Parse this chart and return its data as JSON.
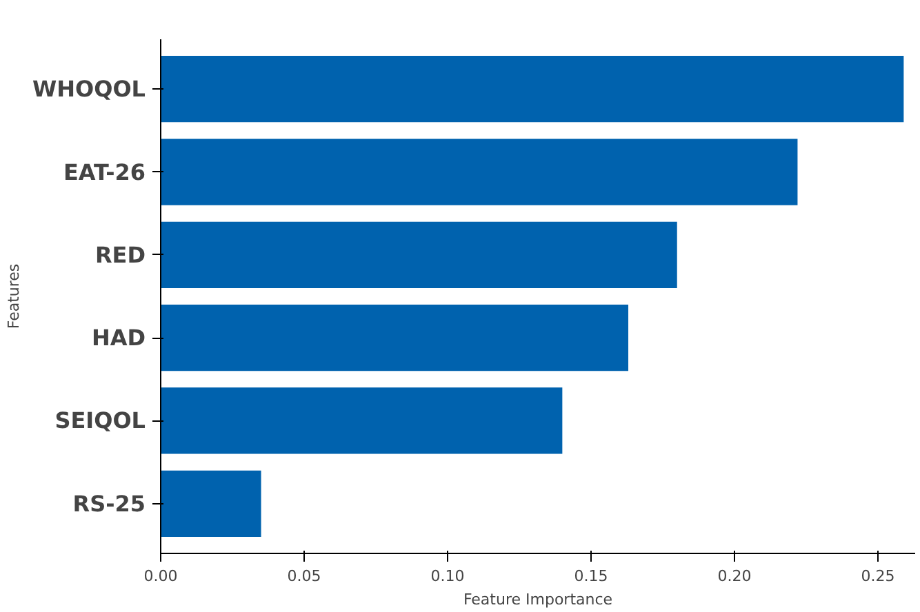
{
  "chart_data": {
    "type": "bar",
    "orientation": "horizontal",
    "xlabel": "Feature Importance",
    "ylabel": "Features",
    "categories": [
      "WHOQOL",
      "EAT-26",
      "RED",
      "HAD",
      "SEIQOL",
      "RS-25"
    ],
    "values": [
      0.259,
      0.222,
      0.18,
      0.163,
      0.14,
      0.035
    ],
    "color": "#0062ae",
    "xlim": [
      0,
      0.263
    ],
    "xticks": [
      {
        "value": 0,
        "label": "0.00"
      },
      {
        "value": 0.05,
        "label": "0.05"
      },
      {
        "value": 0.1,
        "label": "0.10"
      },
      {
        "value": 0.15,
        "label": "0.15"
      },
      {
        "value": 0.2,
        "label": "0.20"
      },
      {
        "value": 0.25,
        "label": "0.25"
      }
    ],
    "grid": false
  }
}
